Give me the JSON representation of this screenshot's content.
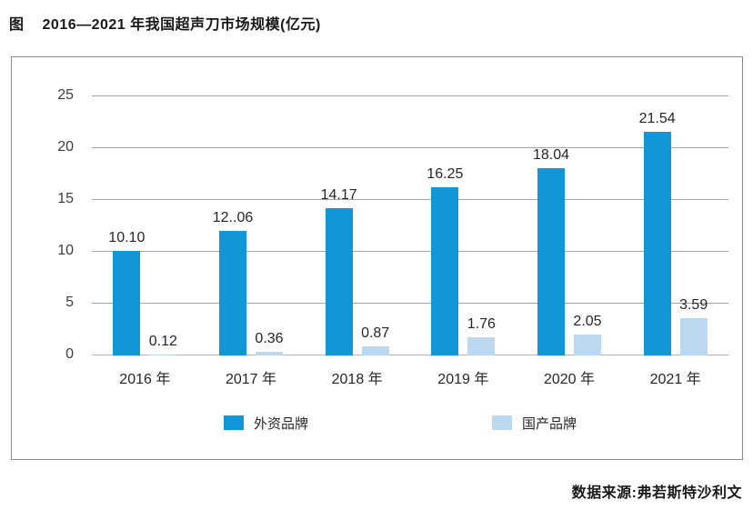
{
  "header": {
    "figure_label": "图",
    "title": "2016—2021 年我国超声刀市场规模(亿元)"
  },
  "footer": {
    "source": "数据来源:弗若斯特沙利文"
  },
  "colors": {
    "foreign_brand": "#1196d8",
    "domestic_brand": "#bbd8f0",
    "gridline": "#a6a6a6",
    "box_border": "#8a8a8a"
  },
  "chart_data": {
    "type": "bar",
    "title": "2016—2021 年我国超声刀市场规模(亿元)",
    "xlabel": "",
    "ylabel": "",
    "categories": [
      "2016 年",
      "2017 年",
      "2018 年",
      "2019 年",
      "2020 年",
      "2021 年"
    ],
    "series": [
      {
        "name": "外资品牌",
        "color": "#1196d8",
        "values": [
          10.1,
          12.06,
          14.17,
          16.25,
          18.04,
          21.54
        ],
        "labels": [
          "10.10",
          "12..06",
          "14.17",
          "16.25",
          "18.04",
          "21.54"
        ]
      },
      {
        "name": "国产品牌",
        "color": "#bbd8f0",
        "values": [
          0.12,
          0.36,
          0.87,
          1.76,
          2.05,
          3.59
        ],
        "labels": [
          "0.12",
          "0.36",
          "0.87",
          "1.76",
          "2.05",
          "3.59"
        ]
      }
    ],
    "ylim": [
      0,
      25
    ],
    "yticks": [
      0,
      5,
      10,
      15,
      20,
      25
    ],
    "grid": true,
    "legend_position": "bottom"
  }
}
